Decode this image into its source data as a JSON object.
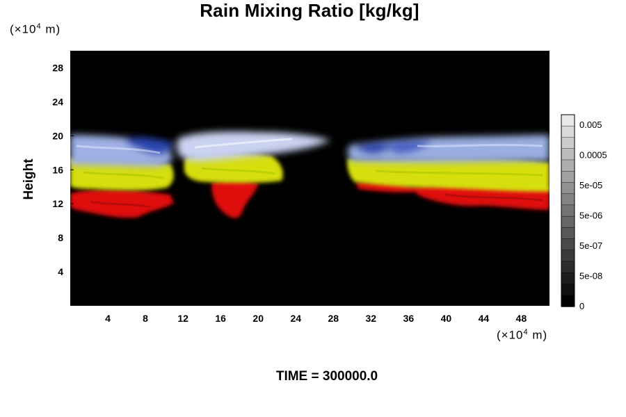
{
  "chart_data": {
    "type": "heatmap",
    "title": "Rain Mixing Ratio [kg/kg]",
    "ylabel": "Height",
    "xlabel": "",
    "x_unit": {
      "prefix": "(×10",
      "exp": "4",
      "suffix": " m)"
    },
    "y_unit": {
      "prefix": "(×10",
      "exp": "4",
      "suffix": " m)"
    },
    "xlim": [
      0,
      51
    ],
    "ylim": [
      0,
      30
    ],
    "x_ticks": [
      4,
      8,
      12,
      16,
      20,
      24,
      28,
      32,
      36,
      40,
      44,
      48
    ],
    "y_ticks": [
      4,
      8,
      12,
      16,
      20,
      24,
      28
    ],
    "grid": false,
    "background": "#000000",
    "layers": [
      {
        "band": "upper",
        "color": "#a8b8e8",
        "y_range": [
          16.5,
          20
        ]
      },
      {
        "band": "middle",
        "color": "#d8e000",
        "y_range": [
          13.5,
          16.5
        ]
      },
      {
        "band": "lower",
        "color": "#e01010",
        "y_range": [
          10.5,
          13.5
        ]
      }
    ],
    "colorbar": {
      "labels": [
        "0.005",
        "0.0005",
        "5e-05",
        "5e-06",
        "5e-07",
        "5e-08",
        "0"
      ],
      "levels": 17
    }
  },
  "footer": {
    "time_label": "TIME = 300000.0"
  }
}
